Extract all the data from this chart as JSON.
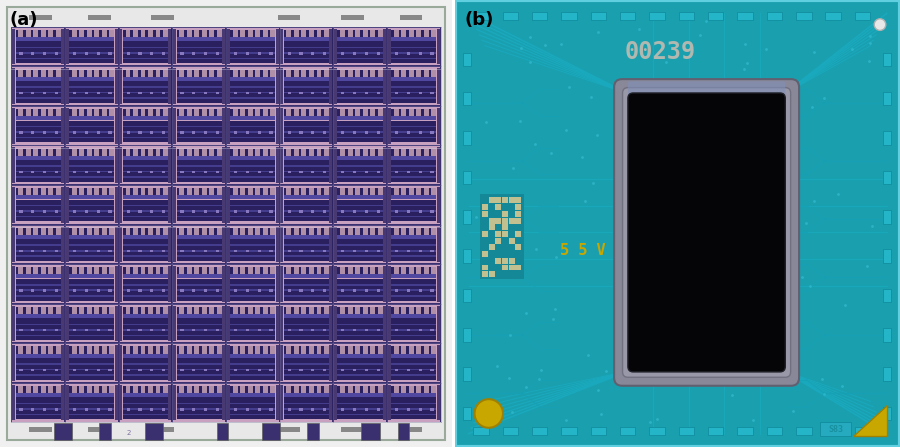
{
  "fig_width": 9.0,
  "fig_height": 4.47,
  "dpi": 100,
  "bg_color": "#ffffff",
  "label_a": "(a)",
  "label_b": "(b)",
  "label_fontsize": 13,
  "label_color": "#000000",
  "chip_a_outer_bg": "#e8e8e8",
  "chip_a_border_color": "#b0b8b0",
  "chip_a_die_pink": "#c8a0c0",
  "chip_a_die_dark": "#38307a",
  "chip_a_die_mid": "#6858a0",
  "chip_a_die_light": "#9080b8",
  "chip_b_bg": "#1a9faf",
  "chip_b_bg2": "#1595a5",
  "chip_b_trace": "#1aafbf",
  "chip_b_die_fill": "#040408",
  "chip_b_die_border_light": "#a0a8c0",
  "chip_b_die_border_dark": "#303040",
  "chip_b_text1": "00239",
  "chip_b_text2": "5 5 V",
  "chip_b_text_color": "#c8a800",
  "chip_b_text1_color": "#b0b8b0",
  "chip_b_via_color": "#40c0d0",
  "chip_b_gold": "#c8a800",
  "chip_b_s83_color": "#18909f"
}
